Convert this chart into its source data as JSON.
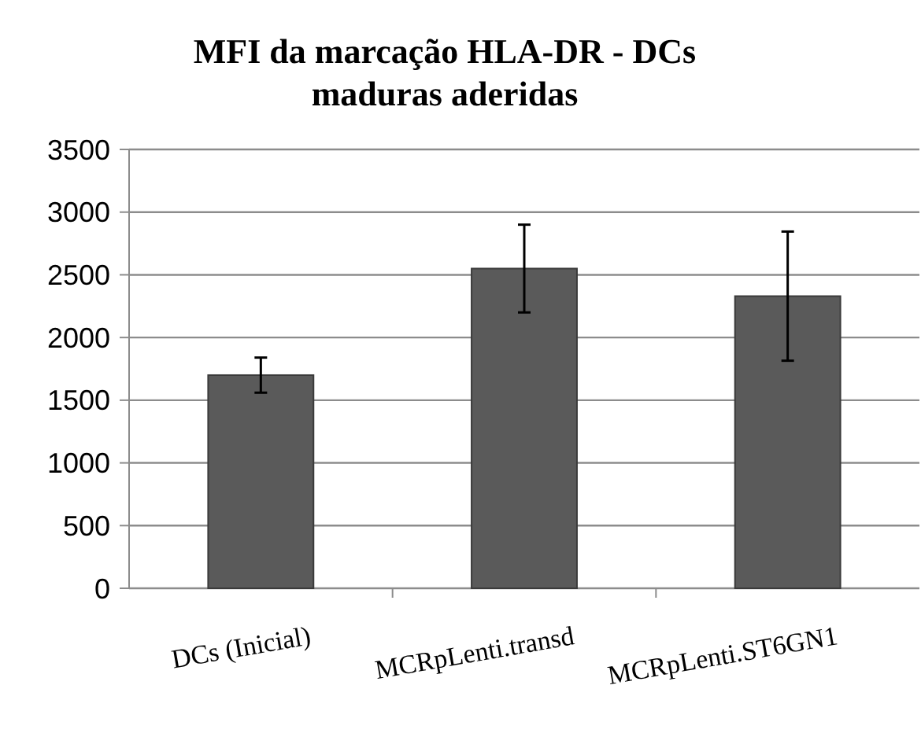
{
  "chart_data": {
    "type": "bar",
    "title": "MFI da marcação HLA-DR - DCs maduras aderidas",
    "categories": [
      "DCs (Inicial)",
      "MCRpLenti.transd",
      "MCRpLenti.ST6GN1"
    ],
    "values": [
      1700,
      2550,
      2330
    ],
    "errors": [
      140,
      350,
      515
    ],
    "color": "#5a5a5a",
    "ylim": [
      0,
      3500
    ],
    "yticks": [
      0,
      500,
      1000,
      1500,
      2000,
      2500,
      3000,
      3500
    ],
    "grid": "y"
  }
}
